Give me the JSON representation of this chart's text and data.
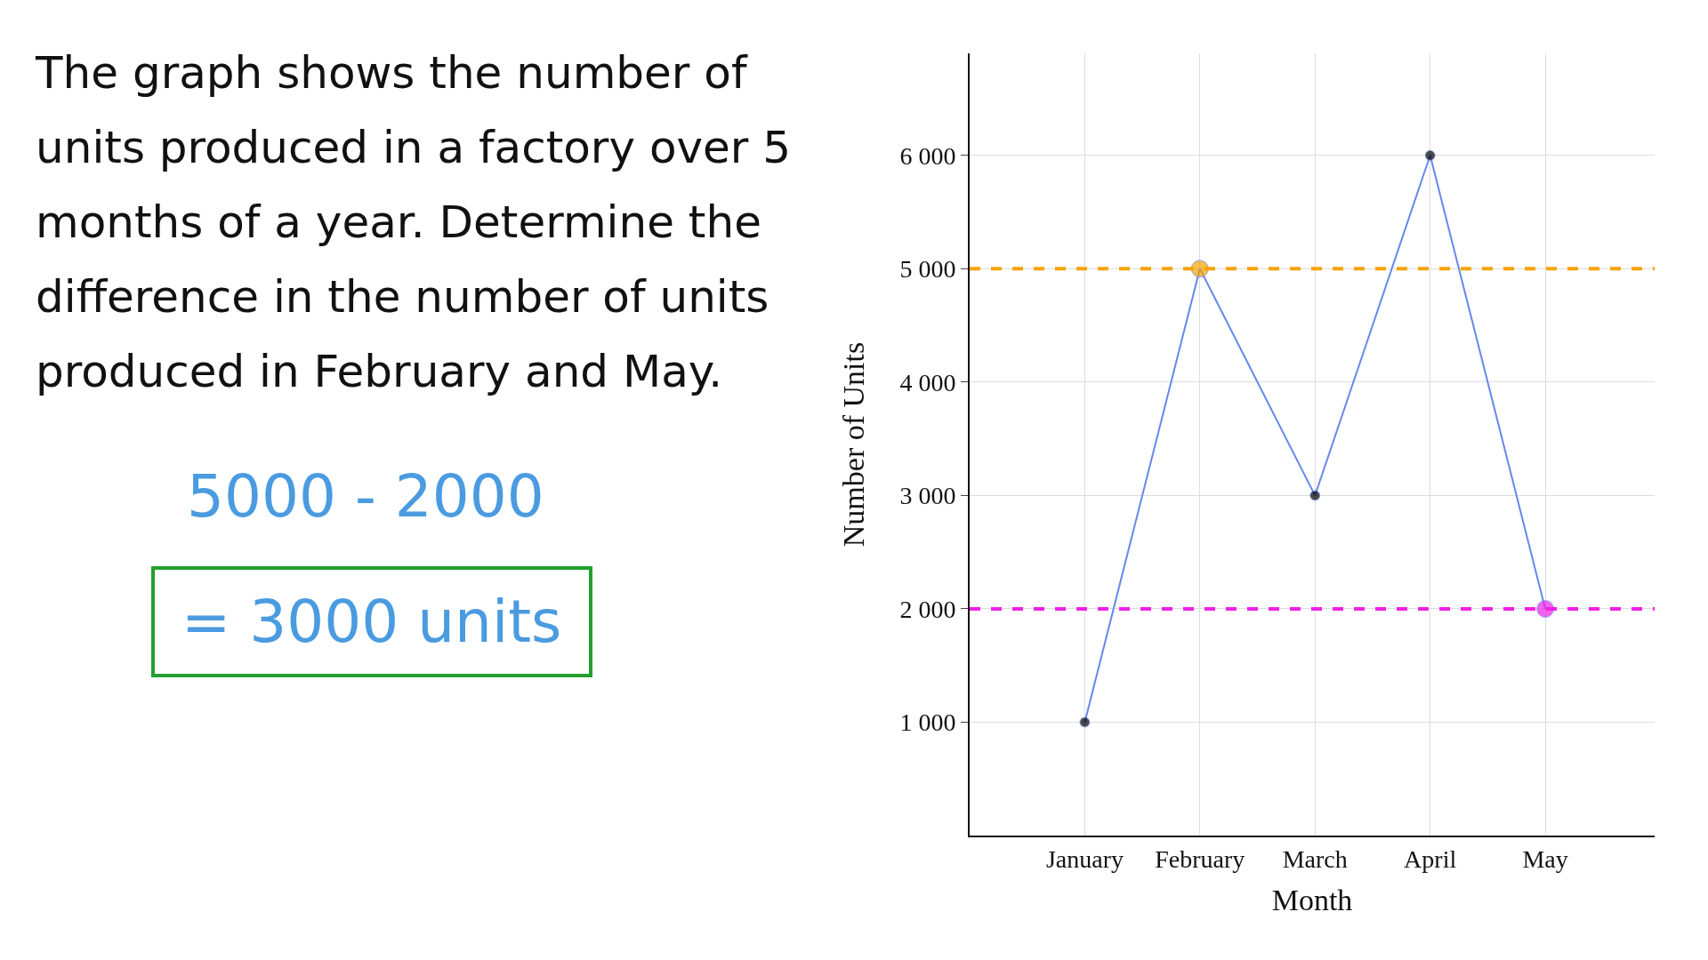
{
  "chart_data": {
    "type": "line",
    "xlabel": "Month",
    "ylabel": "Number of Units",
    "categories": [
      "January",
      "February",
      "March",
      "April",
      "May"
    ],
    "series": [
      {
        "color": "#6688ee",
        "colors": [
          "#000000",
          "#f5a300",
          "#000000",
          "#000000",
          "#f020e8"
        ],
        "values": [
          1000,
          5000,
          3000,
          6000,
          2000
        ]
      }
    ],
    "ylim": [
      0,
      6900
    ],
    "yticks": [
      {
        "value": 1000,
        "label": "1 000"
      },
      {
        "value": 2000,
        "label": "2 000"
      },
      {
        "value": 3000,
        "label": "3 000"
      },
      {
        "value": 4000,
        "label": "4 000"
      },
      {
        "value": 5000,
        "label": "5 000"
      },
      {
        "value": 6000,
        "label": "6 000"
      }
    ],
    "grid": true,
    "marker": "circle",
    "line_style": "solid",
    "ref_lines": [
      {
        "axis": "y",
        "value": 5000,
        "color": "#f5a300",
        "line_style": "dashed"
      },
      {
        "axis": "y",
        "value": 2000,
        "color": "#f020e8",
        "line_style": "dashed"
      }
    ],
    "annotations": [
      "The graph shows the number of units produced in a factory over 5 months of a year. Determine the difference in the number of units produced in February and May.",
      "5000 - 2000",
      "= 3000 units"
    ]
  }
}
